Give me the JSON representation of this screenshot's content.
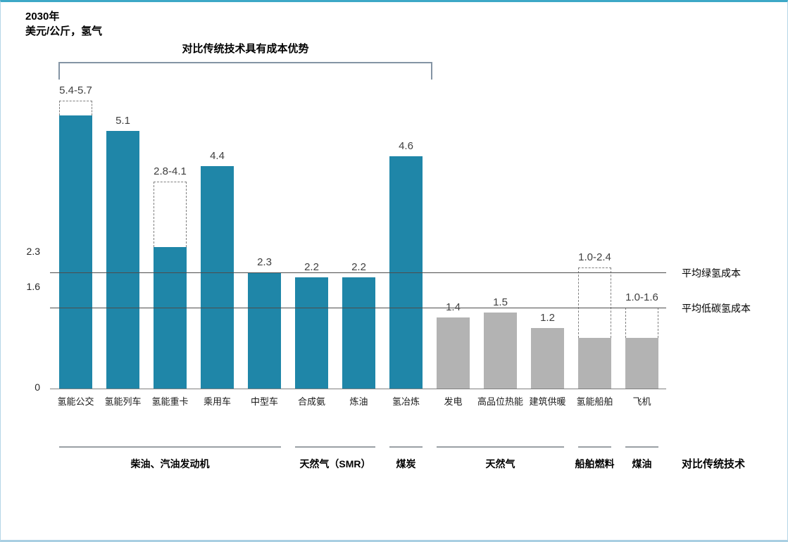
{
  "header": {
    "title_line1": "2030年",
    "title_line2": "美元/公斤，氢气"
  },
  "colors": {
    "hydrogen_bar_teal": "#1f86a8",
    "conventional_bar_gray": "#b3b3b3",
    "reference_line": "#4d4d4d",
    "frame_top_border": "#3da8c7",
    "frame_light_border": "#a9cfe2"
  },
  "chart_data": {
    "type": "bar",
    "title": "2030年 美元/公斤，氢气",
    "ylabel": "美元/公斤，氢气",
    "ylim": [
      0,
      6.5
    ],
    "y_ticks": [
      0,
      1.6,
      2.3
    ],
    "grid": false,
    "annotation": "对比传统技术具有成本优势",
    "categories": [
      "氢能公交",
      "氢能列车",
      "氢能重卡",
      "乘用车",
      "中型车",
      "合成氨",
      "炼油",
      "氢冶炼",
      "发电",
      "高品位热能",
      "建筑供暖",
      "氢能船舶",
      "飞机"
    ],
    "bars": [
      {
        "category": "氢能公交",
        "display": "5.4-5.7",
        "value": 5.4,
        "range_max": 5.7,
        "group": "teal"
      },
      {
        "category": "氢能列车",
        "display": "5.1",
        "value": 5.1,
        "range_max": null,
        "group": "teal"
      },
      {
        "category": "氢能重卡",
        "display": "2.8-4.1",
        "value": 2.8,
        "range_max": 4.1,
        "group": "teal"
      },
      {
        "category": "乘用车",
        "display": "4.4",
        "value": 4.4,
        "range_max": null,
        "group": "teal"
      },
      {
        "category": "中型车",
        "display": "2.3",
        "value": 2.3,
        "range_max": null,
        "group": "teal"
      },
      {
        "category": "合成氨",
        "display": "2.2",
        "value": 2.2,
        "range_max": null,
        "group": "teal"
      },
      {
        "category": "炼油",
        "display": "2.2",
        "value": 2.2,
        "range_max": null,
        "group": "teal"
      },
      {
        "category": "氢冶炼",
        "display": "4.6",
        "value": 4.6,
        "range_max": null,
        "group": "teal"
      },
      {
        "category": "发电",
        "display": "1.4",
        "value": 1.4,
        "range_max": null,
        "group": "gray"
      },
      {
        "category": "高品位热能",
        "display": "1.5",
        "value": 1.5,
        "range_max": null,
        "group": "gray"
      },
      {
        "category": "建筑供暖",
        "display": "1.2",
        "value": 1.2,
        "range_max": null,
        "group": "gray"
      },
      {
        "category": "氢能船舶",
        "display": "1.0-2.4",
        "value": 1.0,
        "range_max": 2.4,
        "group": "gray"
      },
      {
        "category": "飞机",
        "display": "1.0-1.6",
        "value": 1.0,
        "range_max": 1.6,
        "group": "gray"
      }
    ],
    "reference_lines": [
      {
        "value": 2.3,
        "label": "平均绿氢成本"
      },
      {
        "value": 1.6,
        "label": "平均低碳氢成本"
      }
    ],
    "comparison_groups": [
      {
        "label": "柴油、汽油发动机",
        "from": 0,
        "to": 4
      },
      {
        "label": "天然气（SMR）",
        "from": 5,
        "to": 6
      },
      {
        "label": "煤炭",
        "from": 7,
        "to": 7
      },
      {
        "label": "天然气",
        "from": 8,
        "to": 10
      },
      {
        "label": "船舶燃料",
        "from": 11,
        "to": 11
      },
      {
        "label": "煤油",
        "from": 12,
        "to": 12
      }
    ],
    "comparison_row_label": "对比传统技术"
  }
}
